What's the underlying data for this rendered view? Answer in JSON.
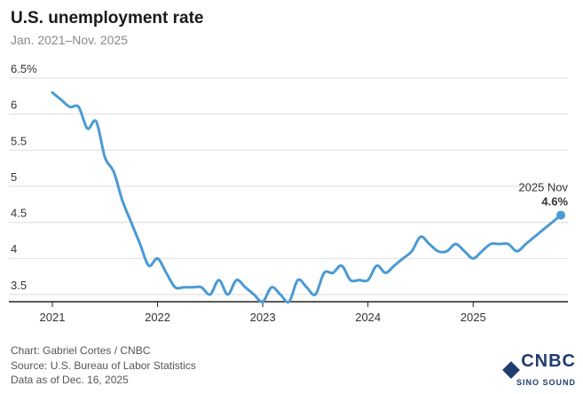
{
  "header": {
    "title": "U.S. unemployment rate",
    "subtitle": "Jan. 2021–Nov. 2025"
  },
  "footer": {
    "credit": "Chart: Gabriel Cortes / CNBC",
    "source": "Source: U.S. Bureau of Labor Statistics",
    "asof": "Data as of Dec. 16, 2025"
  },
  "logo": {
    "name": "CNBC",
    "sub": "SINO SOUND"
  },
  "colors": {
    "line": "#4a9ad4",
    "grid": "#dddddd",
    "axis": "#222222",
    "label": "#1f5a8a"
  },
  "chart_data": {
    "type": "line",
    "title": "U.S. unemployment rate",
    "xlabel": "",
    "ylabel": "",
    "ylim": [
      3.4,
      6.5
    ],
    "y_ticks": [
      {
        "value": 6.5,
        "label": "6.5%"
      },
      {
        "value": 6,
        "label": "6"
      },
      {
        "value": 5.5,
        "label": "5.5"
      },
      {
        "value": 5,
        "label": "5"
      },
      {
        "value": 4.5,
        "label": "4.5"
      },
      {
        "value": 4,
        "label": "4"
      },
      {
        "value": 3.5,
        "label": "3.5"
      }
    ],
    "x_ticks": [
      {
        "value": 2021,
        "label": "2021"
      },
      {
        "value": 2022,
        "label": "2022"
      },
      {
        "value": 2023,
        "label": "2023"
      },
      {
        "value": 2024,
        "label": "2024"
      },
      {
        "value": 2025,
        "label": "2025"
      }
    ],
    "xlim": [
      2021,
      2025.833
    ],
    "series": [
      {
        "name": "Unemployment rate",
        "start": "2021-01",
        "values": [
          6.3,
          6.2,
          6.1,
          6.1,
          5.8,
          5.9,
          5.4,
          5.2,
          4.8,
          4.5,
          4.2,
          3.9,
          4.0,
          3.8,
          3.6,
          3.6,
          3.6,
          3.6,
          3.5,
          3.7,
          3.5,
          3.7,
          3.6,
          3.5,
          3.4,
          3.6,
          3.5,
          3.4,
          3.7,
          3.6,
          3.5,
          3.8,
          3.8,
          3.9,
          3.7,
          3.7,
          3.7,
          3.9,
          3.8,
          3.9,
          4.0,
          4.1,
          4.3,
          4.2,
          4.1,
          4.1,
          4.2,
          4.1,
          4.0,
          4.1,
          4.2,
          4.2,
          4.2,
          4.1,
          4.2,
          4.3,
          4.4,
          4.5,
          4.6
        ]
      }
    ],
    "annotation": {
      "label": "2025 Nov",
      "value_label": "4.6%"
    }
  }
}
